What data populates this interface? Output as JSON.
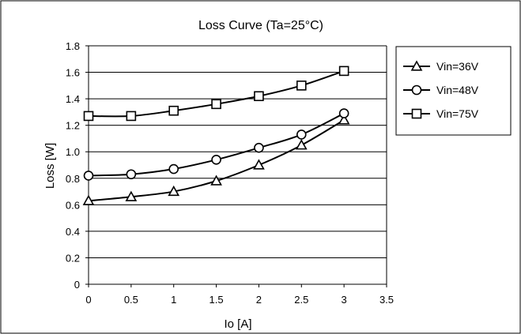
{
  "chart_data": {
    "type": "line",
    "title": "Loss Curve (Ta=25°C)",
    "xlabel": "Io [A]",
    "ylabel": "Loss [W]",
    "x_ticks": [
      "0",
      "0.5",
      "1",
      "1.5",
      "2",
      "2.5",
      "3",
      "3.5"
    ],
    "y_ticks": [
      "0",
      "0.2",
      "0.4",
      "0.6",
      "0.8",
      "1.0",
      "1.2",
      "1.4",
      "1.6",
      "1.8"
    ],
    "xlim": [
      0,
      3.5
    ],
    "ylim": [
      0,
      1.8
    ],
    "grid": "horizontal",
    "legend_position": "right",
    "x": [
      0,
      0.5,
      1,
      1.5,
      2,
      2.5,
      3
    ],
    "series": [
      {
        "name": "Vin=36V",
        "marker": "triangle",
        "values": [
          0.63,
          0.66,
          0.7,
          0.78,
          0.9,
          1.05,
          1.24
        ]
      },
      {
        "name": "Vin=48V",
        "marker": "circle",
        "values": [
          0.82,
          0.83,
          0.87,
          0.94,
          1.03,
          1.13,
          1.29
        ]
      },
      {
        "name": "Vin=75V",
        "marker": "square",
        "values": [
          1.27,
          1.27,
          1.31,
          1.36,
          1.42,
          1.5,
          1.61
        ]
      }
    ],
    "colors": {
      "line": "#000000",
      "grid": "#000000",
      "background": "#ffffff"
    }
  }
}
